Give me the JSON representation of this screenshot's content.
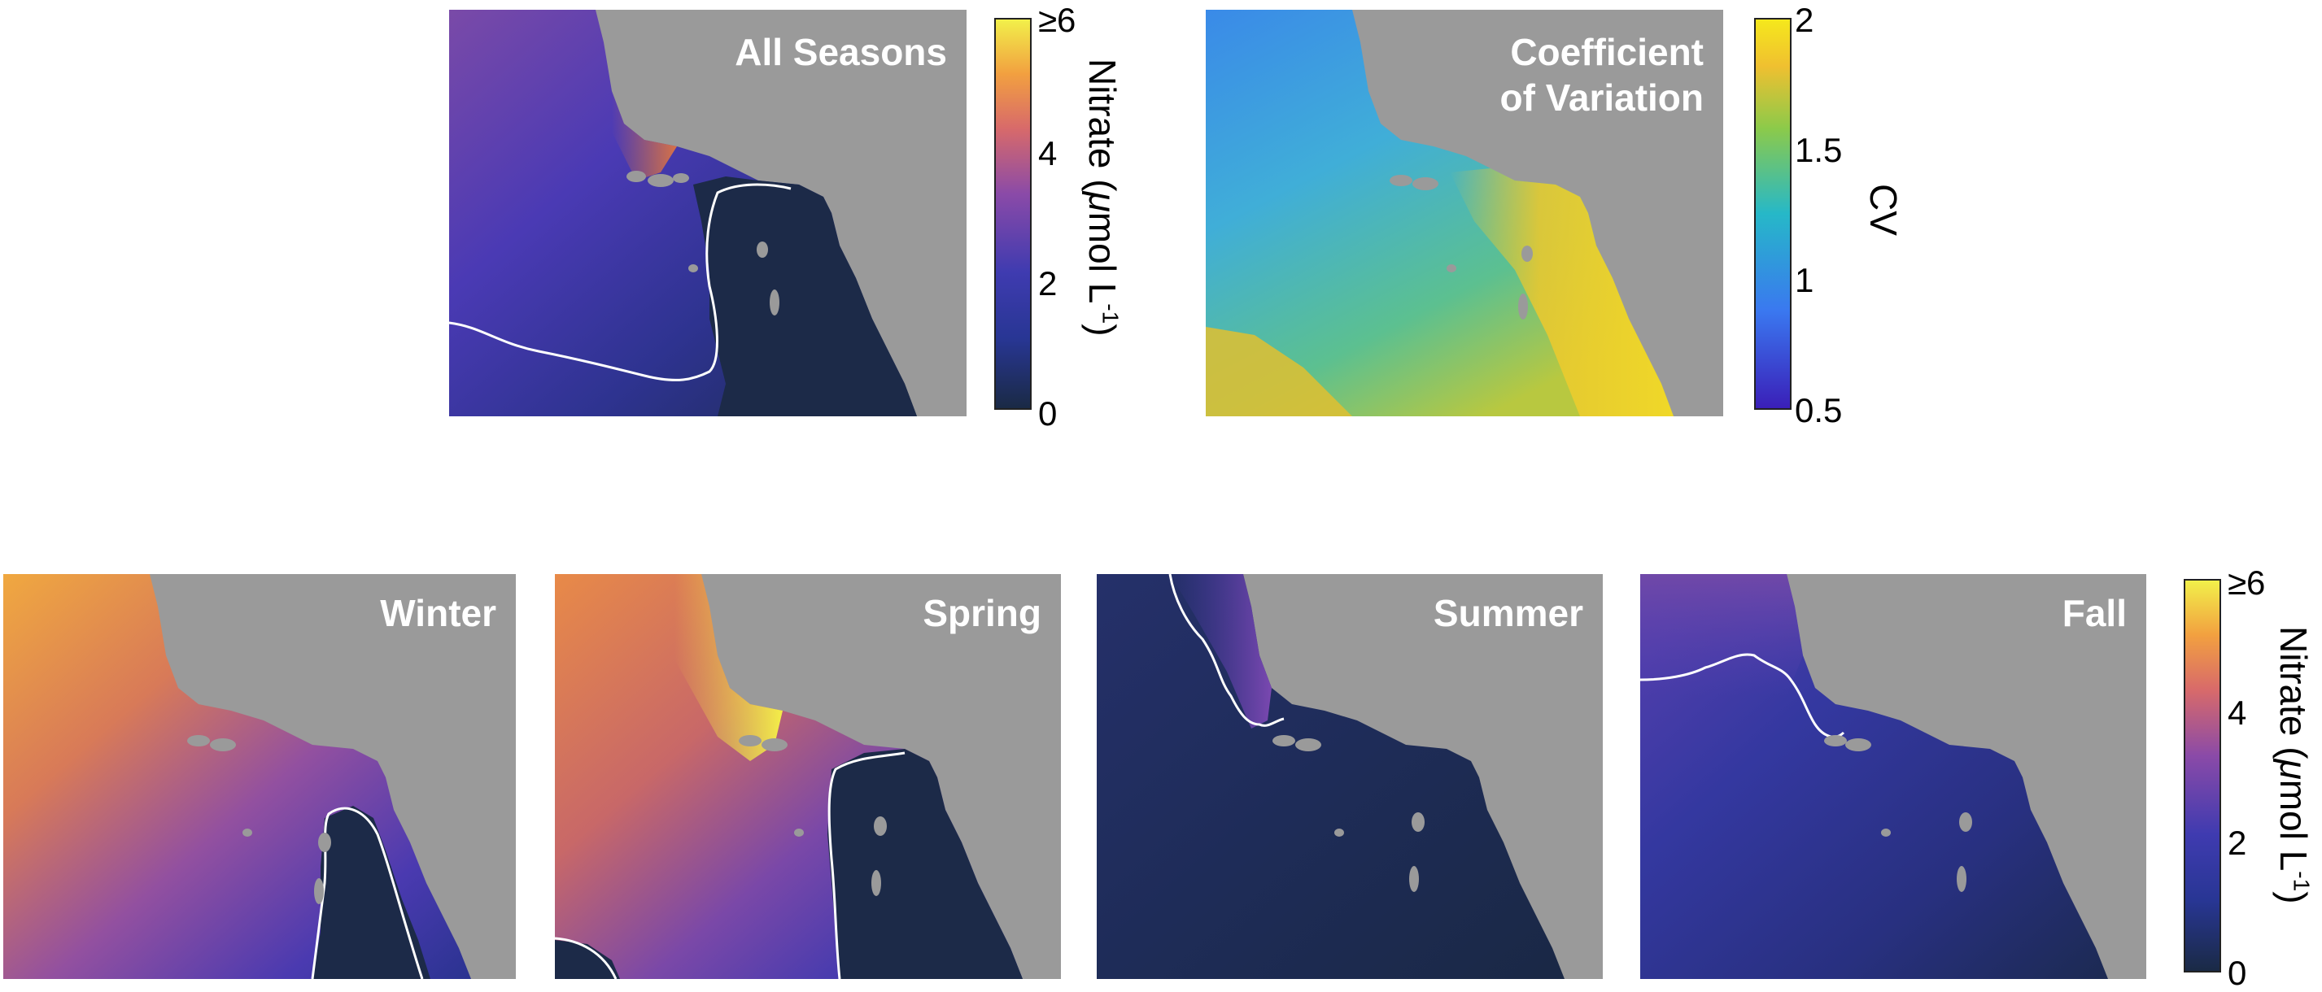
{
  "panels": {
    "all_seasons": "All Seasons",
    "cv_line1": "Coefficient",
    "cv_line2": "of Variation",
    "winter": "Winter",
    "spring": "Spring",
    "summer": "Summer",
    "fall": "Fall"
  },
  "nitrate_colorbar": {
    "label_prefix": "Nitrate (",
    "label_mu": "μ",
    "label_mid": "mol L",
    "label_sup": "-1",
    "label_suffix": ")",
    "ticks": [
      "≥6",
      "4",
      "2",
      "0"
    ]
  },
  "cv_colorbar": {
    "label": "CV",
    "ticks": [
      "2",
      "1.5",
      "1",
      "0.5"
    ]
  },
  "colors": {
    "land": "#9a9a9a",
    "contour": "#ffffff",
    "nitrate_scale": [
      "#1a2a45",
      "#2f3aa0",
      "#6a40b0",
      "#c05a80",
      "#f08a40",
      "#f0e848"
    ],
    "cv_scale": [
      "#4030c0",
      "#3a7ef0",
      "#30b8d8",
      "#50c870",
      "#e0c030",
      "#f0e020"
    ]
  }
}
